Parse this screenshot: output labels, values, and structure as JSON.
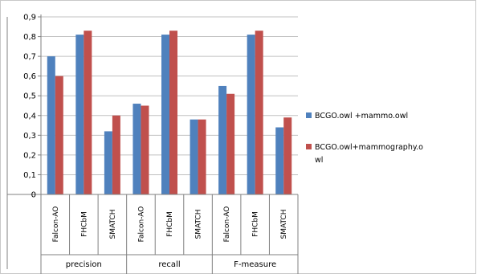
{
  "chart_data": {
    "type": "bar",
    "title": "",
    "xlabel": "",
    "ylabel": "",
    "ylim": [
      0,
      0.9
    ],
    "yticks": [
      "0",
      "0,1",
      "0,2",
      "0,3",
      "0,4",
      "0,5",
      "0,6",
      "0,7",
      "0,8",
      "0,9"
    ],
    "grid": true,
    "legend_position": "right",
    "groups": [
      {
        "label": "precision",
        "categories": [
          "Falcon-AO",
          "FHCbM",
          "SMATCH"
        ]
      },
      {
        "label": "recall",
        "categories": [
          "Falcon-AO",
          "FHCbM",
          "SMATCH"
        ]
      },
      {
        "label": "F-measure",
        "categories": [
          "Falcon-AO",
          "FHCbM",
          "SMATCH"
        ]
      }
    ],
    "categories": [
      "Falcon-AO",
      "FHCbM",
      "SMATCH",
      "Falcon-AO",
      "FHCbM",
      "SMATCH",
      "Falcon-AO",
      "FHCbM",
      "SMATCH"
    ],
    "series": [
      {
        "name": "BCGO.owl +mammo.owl",
        "color": "#4f81bd",
        "values": [
          0.7,
          0.81,
          0.32,
          0.46,
          0.81,
          0.38,
          0.55,
          0.81,
          0.34
        ]
      },
      {
        "name": "BCGO.owl+mammography.owl",
        "color": "#c0504d",
        "values": [
          0.6,
          0.83,
          0.4,
          0.45,
          0.83,
          0.38,
          0.51,
          0.83,
          0.39
        ]
      }
    ]
  },
  "legend": {
    "items": [
      {
        "lines": [
          "BCGO.owl +mammo.owl"
        ]
      },
      {
        "lines": [
          "BCGO.owl+mammography.o",
          "wl"
        ]
      }
    ]
  }
}
